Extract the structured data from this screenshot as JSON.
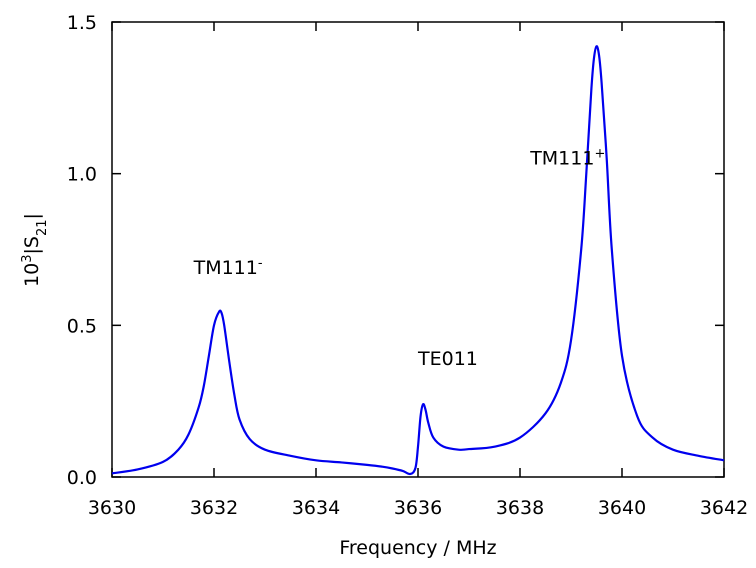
{
  "chart_data": {
    "type": "line",
    "title": "",
    "xlabel": "Frequency / MHz",
    "ylabel": {
      "base": "10",
      "exp": "3",
      "mid": "|S",
      "sub": "21",
      "end": "|"
    },
    "xlim": [
      3630,
      3642
    ],
    "ylim": [
      0,
      1.5
    ],
    "xticks": [
      "3630",
      "3632",
      "3634",
      "3636",
      "3638",
      "3640",
      "3642"
    ],
    "yticks": [
      "0.0",
      "0.5",
      "1.0",
      "1.5"
    ],
    "grid": false,
    "line_color": "#0000ee",
    "annotations": [
      {
        "base": "TM111",
        "sup": "-",
        "x": 3631.6,
        "y": 0.67
      },
      {
        "base": "TE011",
        "sup": "",
        "x": 3636.0,
        "y": 0.37
      },
      {
        "base": "TM111",
        "sup": "+",
        "x": 3638.2,
        "y": 1.03
      }
    ],
    "series": [
      {
        "x": [
          3630.0,
          3630.5,
          3631.0,
          3631.3,
          3631.5,
          3631.7,
          3631.8,
          3631.9,
          3632.0,
          3632.1,
          3632.15,
          3632.2,
          3632.3,
          3632.4,
          3632.5,
          3632.7,
          3633.0,
          3633.5,
          3634.0,
          3634.5,
          3635.0,
          3635.3,
          3635.5,
          3635.7,
          3635.85,
          3635.95,
          3636.0,
          3636.05,
          3636.1,
          3636.15,
          3636.2,
          3636.3,
          3636.5,
          3636.8,
          3637.0,
          3637.5,
          3638.0,
          3638.5,
          3638.8,
          3639.0,
          3639.2,
          3639.3,
          3639.4,
          3639.45,
          3639.5,
          3639.55,
          3639.6,
          3639.7,
          3639.8,
          3640.0,
          3640.3,
          3640.6,
          3641.0,
          3641.5,
          3642.0
        ],
        "y": [
          0.012,
          0.025,
          0.05,
          0.09,
          0.14,
          0.23,
          0.3,
          0.4,
          0.5,
          0.545,
          0.54,
          0.5,
          0.38,
          0.27,
          0.19,
          0.125,
          0.09,
          0.07,
          0.055,
          0.048,
          0.04,
          0.034,
          0.028,
          0.02,
          0.01,
          0.03,
          0.1,
          0.2,
          0.24,
          0.22,
          0.18,
          0.13,
          0.1,
          0.09,
          0.092,
          0.1,
          0.13,
          0.21,
          0.31,
          0.45,
          0.75,
          1.0,
          1.28,
          1.38,
          1.42,
          1.39,
          1.3,
          1.05,
          0.75,
          0.4,
          0.2,
          0.13,
          0.09,
          0.07,
          0.055
        ]
      }
    ]
  }
}
